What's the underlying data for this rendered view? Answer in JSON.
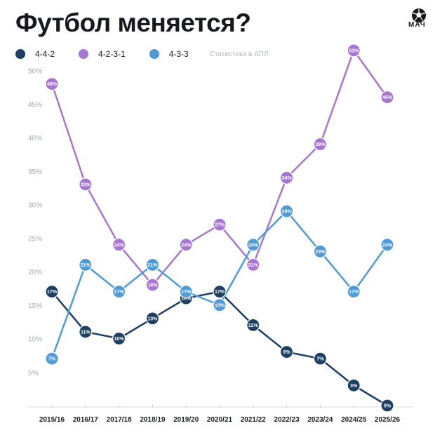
{
  "title": "Футбол меняется?",
  "logo": {
    "text": "МАЧ",
    "icon": "soccer-ball-icon"
  },
  "legend_note": "Статистика в АПЛ",
  "chart_data": {
    "type": "line",
    "title": "Футбол меняется?",
    "xlabel": "",
    "ylabel": "",
    "categories": [
      "2015/16",
      "2016/17",
      "2017/18",
      "2018/19",
      "2019/20",
      "2020/21",
      "2021/22",
      "2022/23",
      "2023/24",
      "2024/25",
      "2025/26"
    ],
    "yticks": [
      5,
      10,
      15,
      20,
      25,
      30,
      35,
      40,
      45,
      50
    ],
    "ytick_labels": [
      "5%",
      "10%",
      "15%",
      "20%",
      "25%",
      "30%",
      "35%",
      "40%",
      "45%",
      "50%"
    ],
    "ylim": [
      0,
      52
    ],
    "grid": false,
    "legend_position": "top-left",
    "series": [
      {
        "name": "4-4-2",
        "color": "#1d3f63",
        "values": [
          17,
          11,
          10,
          13,
          16,
          17,
          12,
          8,
          7,
          3,
          0
        ],
        "labels": [
          "17%",
          "11%",
          "10%",
          "13%",
          "16%",
          "17%",
          "12%",
          "8%",
          "7%",
          "3%",
          "0%"
        ]
      },
      {
        "name": "4-2-3-1",
        "color": "#a776d1",
        "values": [
          48,
          33,
          24,
          18,
          24,
          27,
          21,
          34,
          39,
          53,
          46
        ],
        "labels": [
          "48%",
          "33%",
          "24%",
          "18%",
          "24%",
          "27%",
          "21%",
          "34%",
          "39%",
          "53%",
          "46%"
        ]
      },
      {
        "name": "4-3-3",
        "color": "#4f9bd8",
        "values": [
          7,
          21,
          17,
          21,
          17,
          15,
          24,
          29,
          23,
          17,
          24
        ],
        "labels": [
          "7%",
          "21%",
          "17%",
          "21%",
          "17%",
          "15%",
          "24%",
          "29%",
          "23%",
          "17%",
          "24%"
        ]
      }
    ]
  }
}
